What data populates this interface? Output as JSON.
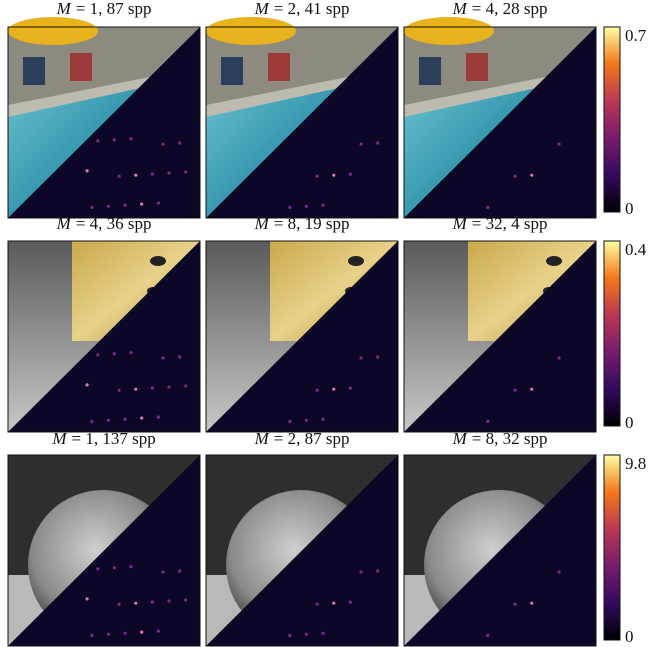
{
  "rows": [
    {
      "panels": [
        {
          "symbol": "M",
          "rest": "= 1, 87 spp"
        },
        {
          "symbol": "M",
          "rest": "= 2, 41 spp"
        },
        {
          "symbol": "M",
          "rest": "= 4, 28 spp"
        }
      ],
      "colorbar": {
        "max": "0.7",
        "min": "0"
      }
    },
    {
      "panels": [
        {
          "symbol": "M",
          "rest": "= 4, 36 spp"
        },
        {
          "symbol": "M",
          "rest": "= 8, 19 spp"
        },
        {
          "symbol": "M",
          "rest": "= 32, 4 spp"
        }
      ],
      "colorbar": {
        "max": "0.4",
        "min": "0"
      }
    },
    {
      "panels": [
        {
          "symbol": "M",
          "rest": "= 1, 137 spp"
        },
        {
          "symbol": "M",
          "rest": "= 2, 87 spp"
        },
        {
          "symbol": "M",
          "rest": "= 8, 32 spp"
        }
      ],
      "colorbar": {
        "max": "9.8",
        "min": "0"
      }
    }
  ]
}
